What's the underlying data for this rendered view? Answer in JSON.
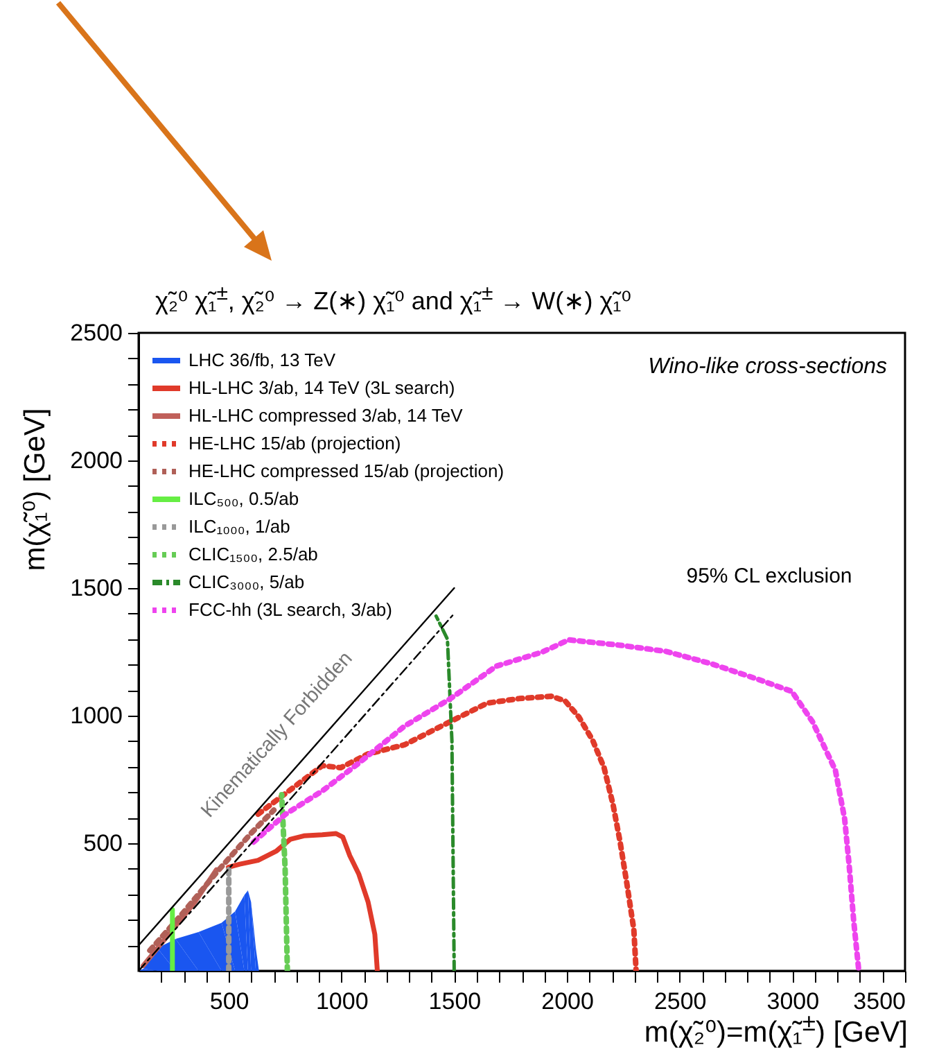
{
  "chart_data": {
    "type": "line",
    "title": "χ̃₂⁰ χ̃₁$^{±}$, χ̃₂⁰ → Z(∗) χ̃₁⁰ and χ̃₁$^{±}$ → W(∗) χ̃₁⁰",
    "xlabel": "m(χ̃₂⁰)=m(χ̃₁$^{±}$) [GeV]",
    "ylabel": "m(χ̃₁⁰) [GeV]",
    "annotations": [
      "Wino-like cross-sections",
      "95% CL exclusion",
      "Kinematically Forbidden"
    ],
    "xlim": [
      100,
      3500
    ],
    "ylim": [
      0,
      2500
    ],
    "xticks": [
      {
        "value": 200,
        "label": null
      },
      {
        "value": 300,
        "label": null
      },
      {
        "value": 400,
        "label": null
      },
      500,
      {
        "value": 600,
        "label": null
      },
      {
        "value": 700,
        "label": null
      },
      {
        "value": 800,
        "label": null
      },
      {
        "value": 900,
        "label": null
      },
      1000,
      {
        "value": 1100,
        "label": null
      },
      {
        "value": 1200,
        "label": null
      },
      {
        "value": 1300,
        "label": null
      },
      {
        "value": 1400,
        "label": null
      },
      1500,
      {
        "value": 1600,
        "label": null
      },
      {
        "value": 1700,
        "label": null
      },
      {
        "value": 1800,
        "label": null
      },
      {
        "value": 1900,
        "label": null
      },
      2000,
      {
        "value": 2100,
        "label": null
      },
      {
        "value": 2200,
        "label": null
      },
      {
        "value": 2300,
        "label": null
      },
      {
        "value": 2400,
        "label": null
      },
      2500,
      {
        "value": 2600,
        "label": null
      },
      {
        "value": 2700,
        "label": null
      },
      {
        "value": 2800,
        "label": null
      },
      {
        "value": 2900,
        "label": null
      },
      3000,
      {
        "value": 3100,
        "label": null
      },
      {
        "value": 3200,
        "label": null
      },
      {
        "value": 3300,
        "label": null
      },
      {
        "value": 3400,
        "label": null
      },
      3500
    ],
    "yticks": [
      {
        "value": 100,
        "label": null
      },
      {
        "value": 200,
        "label": null
      },
      {
        "value": 300,
        "label": null
      },
      {
        "value": 400,
        "label": null
      },
      500,
      {
        "value": 600,
        "label": null
      },
      {
        "value": 700,
        "label": null
      },
      {
        "value": 800,
        "label": null
      },
      {
        "value": 900,
        "label": null
      },
      1000,
      {
        "value": 1100,
        "label": null
      },
      {
        "value": 1200,
        "label": null
      },
      {
        "value": 1300,
        "label": null
      },
      {
        "value": 1400,
        "label": null
      },
      1500,
      {
        "value": 1600,
        "label": null
      },
      {
        "value": 1700,
        "label": null
      },
      {
        "value": 1800,
        "label": null
      },
      {
        "value": 1900,
        "label": null
      },
      2000,
      {
        "value": 2100,
        "label": null
      },
      {
        "value": 2200,
        "label": null
      },
      {
        "value": 2300,
        "label": null
      },
      {
        "value": 2400,
        "label": null
      },
      2500
    ],
    "legend": "top left",
    "series": [
      {
        "name": "LHC 36/fb, 13 TeV",
        "type": "area",
        "color": "#1a56f0",
        "x": [
          100,
          122,
          183,
          264,
          366,
          468,
          528,
          569,
          585,
          599,
          620,
          634
        ],
        "values": [
          0,
          8,
          89,
          125,
          152,
          188,
          233,
          297,
          315,
          270,
          89,
          0
        ]
      },
      {
        "name": "HL-LHC 3/ab, 14 TeV (3L search)",
        "color": "#e03a2a",
        "line_style": "solid",
        "x": [
          498,
          549,
          630,
          712,
          772,
          833,
          915,
          976,
          1006,
          1037,
          1077,
          1118,
          1148,
          1159
        ],
        "values": [
          406,
          418,
          433,
          470,
          515,
          529,
          533,
          538,
          524,
          451,
          379,
          270,
          143,
          0
        ]
      },
      {
        "name": "HL-LHC compressed 3/ab, 14 TeV",
        "color": "#c0605a",
        "line_style": "solid",
        "x": [
          120,
          250,
          350,
          445
        ],
        "values": [
          20,
          160,
          270,
          396
        ]
      },
      {
        "name": "HE-LHC 15/ab (projection)",
        "color": "#e03a2a",
        "line_style": "dotted",
        "x": [
          630,
          915,
          996,
          1118,
          1280,
          1443,
          1524,
          1646,
          1789,
          1931,
          1992,
          2053,
          2114,
          2165,
          2205,
          2236,
          2266,
          2297,
          2307
        ],
        "values": [
          614,
          804,
          796,
          850,
          886,
          959,
          995,
          1049,
          1067,
          1076,
          1058,
          995,
          904,
          796,
          650,
          505,
          342,
          161,
          0
        ]
      },
      {
        "name": "HE-LHC compressed 15/ab (projection)",
        "color": "#b06058",
        "line_style": "dotted",
        "x": [
          150,
          300,
          450,
          600,
          700
        ],
        "values": [
          80,
          230,
          390,
          540,
          630
        ]
      },
      {
        "name": "ILC₅₀₀, 0.5/ab",
        "color": "#66ee44",
        "line_style": "solid",
        "x": [
          250,
          250
        ],
        "values": [
          0,
          240
        ]
      },
      {
        "name": "ILC₁₀₀₀, 1/ab",
        "color": "#999999",
        "line_style": "dotted",
        "x": [
          500,
          500
        ],
        "values": [
          0,
          400
        ]
      },
      {
        "name": "CLIC₁₅₀₀, 2.5/ab",
        "color": "#66cc55",
        "line_style": "dotted",
        "x": [
          760,
          750,
          735
        ],
        "values": [
          0,
          400,
          690
        ]
      },
      {
        "name": "CLIC₃₀₀₀, 5/ab",
        "color": "#2a8a2a",
        "line_style": "dashed",
        "x": [
          1500,
          1490,
          1470,
          1420
        ],
        "values": [
          0,
          900,
          1300,
          1390
        ]
      },
      {
        "name": "FCC-hh (3L search, 3/ab)",
        "color": "#ee44ee",
        "line_style": "dotted",
        "x": [
          610,
          752,
          915,
          1077,
          1280,
          1484,
          1687,
          1890,
          2008,
          2236,
          2439,
          2642,
          2846,
          2998,
          3089,
          3191,
          3232,
          3252,
          3272,
          3293,
          3295
        ],
        "values": [
          505,
          614,
          705,
          814,
          959,
          1067,
          1194,
          1249,
          1297,
          1276,
          1252,
          1203,
          1143,
          1095,
          977,
          786,
          596,
          415,
          198,
          16,
          0
        ]
      },
      {
        "color": "#000000",
        "line_style": "solid",
        "x": [
          100,
          1500
        ],
        "values": [
          100,
          1500
        ]
      },
      {
        "color": "#000000",
        "line_style": "dashed",
        "x": [
          100,
          1500
        ],
        "values": [
          0,
          1400
        ]
      }
    ]
  }
}
